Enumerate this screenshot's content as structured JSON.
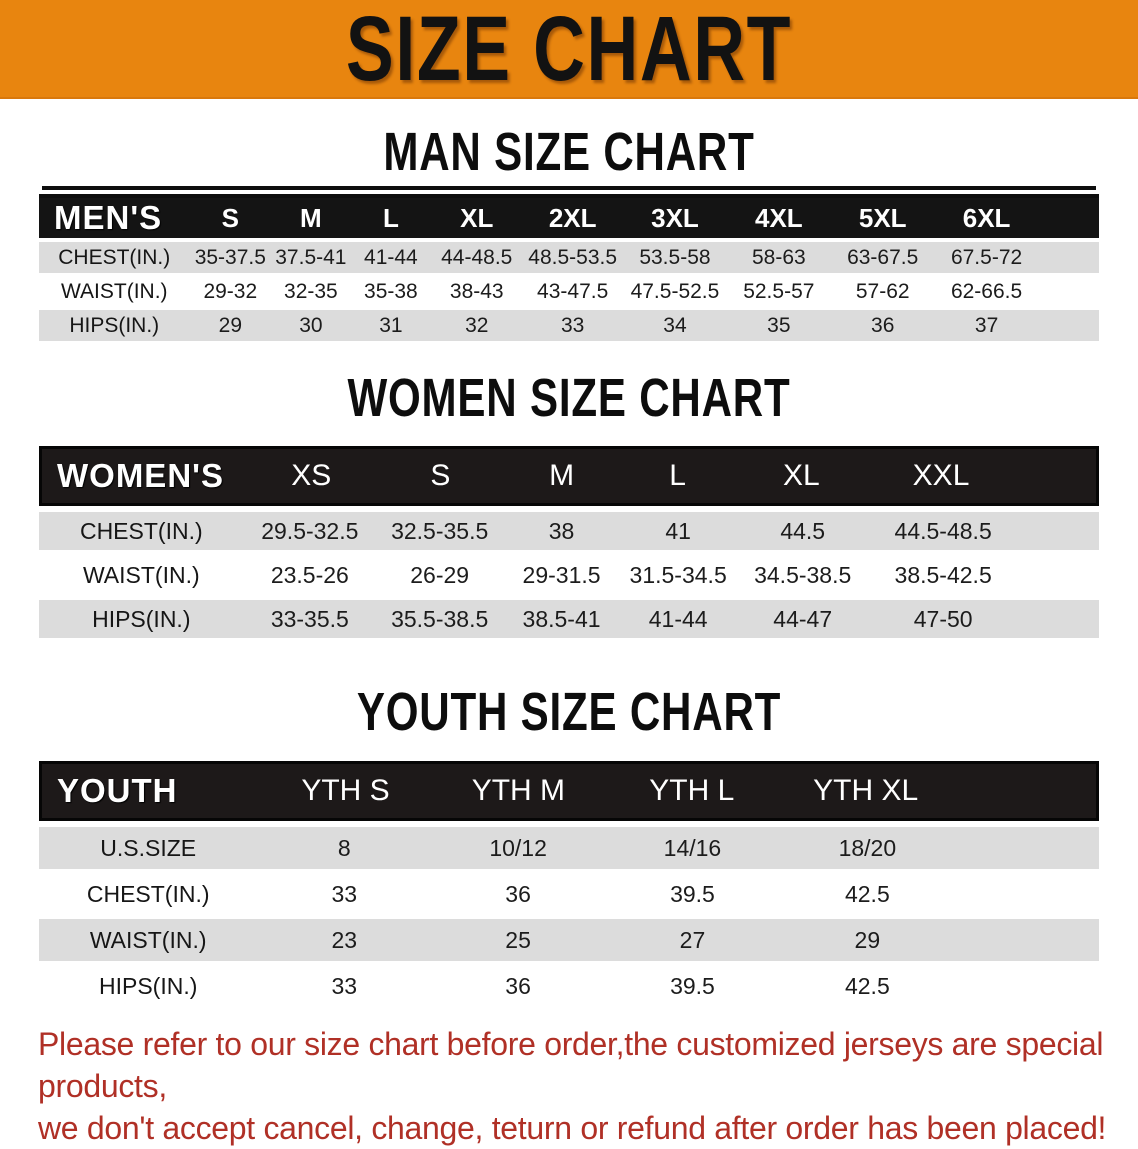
{
  "banner": {
    "title": "SIZE CHART",
    "bg_color": "#E8850F"
  },
  "colors": {
    "header_bar": "#1d1919",
    "shaded_row": "#DCDCDC",
    "footer_text": "#B03026"
  },
  "sections": [
    {
      "id": "men",
      "heading": "MAN SIZE CHART",
      "table": {
        "header": [
          "MEN'S",
          "S",
          "M",
          "L",
          "XL",
          "2XL",
          "3XL",
          "4XL",
          "5XL",
          "6XL"
        ],
        "rows": [
          {
            "label": "CHEST(IN.)",
            "values": [
              "35-37.5",
              "37.5-41",
              "41-44",
              "44-48.5",
              "48.5-53.5",
              "53.5-58",
              "58-63",
              "63-67.5",
              "67.5-72"
            ]
          },
          {
            "label": "WAIST(IN.)",
            "values": [
              "29-32",
              "32-35",
              "35-38",
              "38-43",
              "43-47.5",
              "47.5-52.5",
              "52.5-57",
              "57-62",
              "62-66.5"
            ]
          },
          {
            "label": "HIPS(IN.)",
            "values": [
              "29",
              "30",
              "31",
              "32",
              "33",
              "34",
              "35",
              "36",
              "37"
            ]
          }
        ]
      }
    },
    {
      "id": "women",
      "heading": "WOMEN SIZE CHART",
      "table": {
        "header": [
          "WOMEN'S",
          "XS",
          "S",
          "M",
          "L",
          "XL",
          "XXL"
        ],
        "rows": [
          {
            "label": "CHEST(IN.)",
            "values": [
              "29.5-32.5",
              "32.5-35.5",
              "38",
              "41",
              "44.5",
              "44.5-48.5"
            ]
          },
          {
            "label": "WAIST(IN.)",
            "values": [
              "23.5-26",
              "26-29",
              "29-31.5",
              "31.5-34.5",
              "34.5-38.5",
              "38.5-42.5"
            ]
          },
          {
            "label": "HIPS(IN.)",
            "values": [
              "33-35.5",
              "35.5-38.5",
              "38.5-41",
              "41-44",
              "44-47",
              "47-50"
            ]
          }
        ]
      }
    },
    {
      "id": "youth",
      "heading": "YOUTH SIZE CHART",
      "table": {
        "header": [
          "YOUTH",
          "YTH S",
          "YTH M",
          "YTH L",
          "YTH XL"
        ],
        "rows": [
          {
            "label": "U.S.SIZE",
            "values": [
              "8",
              "10/12",
              "14/16",
              "18/20"
            ]
          },
          {
            "label": "CHEST(IN.)",
            "values": [
              "33",
              "36",
              "39.5",
              "42.5"
            ]
          },
          {
            "label": "WAIST(IN.)",
            "values": [
              "23",
              "25",
              "27",
              "29"
            ]
          },
          {
            "label": "HIPS(IN.)",
            "values": [
              "33",
              "36",
              "39.5",
              "42.5"
            ]
          }
        ]
      }
    }
  ],
  "footer": {
    "line1": "Please refer to our size chart before order,the customized jerseys are special products,",
    "line2": "we don't accept cancel, change, teturn or refund after order has been placed!"
  }
}
